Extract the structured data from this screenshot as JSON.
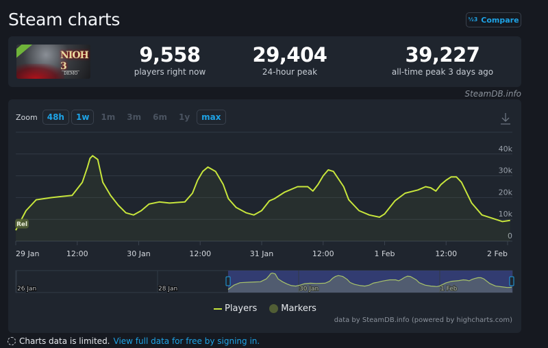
{
  "header": {
    "title": "Steam charts",
    "compare_label": "Compare",
    "compare_icon": "one-two-three-icon"
  },
  "game": {
    "logo_text": "NIOH 3",
    "logo_sub": "DEMO"
  },
  "stats": [
    {
      "value": "9,558",
      "label": "players right now"
    },
    {
      "value": "29,404",
      "label": "24-hour peak"
    },
    {
      "value": "39,227",
      "label": "all-time peak 3 days ago"
    }
  ],
  "watermark": "SteamDB.info",
  "zoom": {
    "label": "Zoom",
    "options": [
      {
        "label": "48h",
        "active": true
      },
      {
        "label": "1w",
        "active": true
      },
      {
        "label": "1m",
        "active": false
      },
      {
        "label": "3m",
        "active": false
      },
      {
        "label": "6m",
        "active": false
      },
      {
        "label": "1y",
        "active": false
      },
      {
        "label": "max",
        "active": true
      }
    ]
  },
  "colors": {
    "line": "#c8e63c",
    "accent": "#1ea3e6",
    "marker": "#515e35",
    "navigator_selection": "#3a4488"
  },
  "chart_data": {
    "type": "line",
    "title": "",
    "xlabel": "",
    "ylabel": "",
    "ylim": [
      0,
      50000
    ],
    "yticks": [
      {
        "v": 0,
        "label": "0"
      },
      {
        "v": 10000,
        "label": "10k"
      },
      {
        "v": 20000,
        "label": "20k"
      },
      {
        "v": 30000,
        "label": "30k"
      },
      {
        "v": 40000,
        "label": "40k"
      }
    ],
    "xticks": [
      {
        "t": "29 Jan 00:00",
        "label": "29 Jan"
      },
      {
        "t": "29 Jan 12:00",
        "label": "12:00"
      },
      {
        "t": "30 Jan 00:00",
        "label": "30 Jan"
      },
      {
        "t": "30 Jan 12:00",
        "label": "12:00"
      },
      {
        "t": "31 Jan 00:00",
        "label": "31 Jan"
      },
      {
        "t": "31 Jan 12:00",
        "label": "12:00"
      },
      {
        "t": "1 Feb 00:00",
        "label": "1 Feb"
      },
      {
        "t": "1 Feb 12:00",
        "label": "12:00"
      },
      {
        "t": "2 Feb 00:00",
        "label": "2 Feb"
      }
    ],
    "grid": true,
    "legend_placement": "bottom",
    "markers": [
      {
        "t": "29 Jan 00:00",
        "value": 8000,
        "label": "Rel"
      }
    ],
    "series": [
      {
        "name": "Players",
        "points": [
          [
            "29 Jan 00:00",
            5000
          ],
          [
            "29 Jan 02:00",
            14000
          ],
          [
            "29 Jan 04:00",
            19000
          ],
          [
            "29 Jan 07:00",
            20000
          ],
          [
            "29 Jan 09:00",
            20500
          ],
          [
            "29 Jan 11:00",
            21000
          ],
          [
            "29 Jan 13:00",
            27000
          ],
          [
            "29 Jan 14:00",
            34000
          ],
          [
            "29 Jan 14:30",
            38000
          ],
          [
            "29 Jan 15:00",
            39200
          ],
          [
            "29 Jan 16:00",
            37500
          ],
          [
            "29 Jan 17:00",
            27000
          ],
          [
            "29 Jan 18:30",
            21000
          ],
          [
            "29 Jan 20:00",
            16500
          ],
          [
            "29 Jan 21:30",
            13000
          ],
          [
            "29 Jan 23:00",
            12000
          ],
          [
            "30 Jan 00:30",
            14000
          ],
          [
            "30 Jan 02:00",
            17000
          ],
          [
            "30 Jan 04:00",
            18000
          ],
          [
            "30 Jan 06:00",
            17500
          ],
          [
            "30 Jan 09:00",
            18000
          ],
          [
            "30 Jan 10:30",
            22000
          ],
          [
            "30 Jan 11:30",
            28000
          ],
          [
            "30 Jan 12:30",
            32000
          ],
          [
            "30 Jan 13:30",
            34000
          ],
          [
            "30 Jan 15:00",
            32000
          ],
          [
            "30 Jan 16:30",
            26000
          ],
          [
            "30 Jan 17:30",
            19500
          ],
          [
            "30 Jan 19:00",
            15500
          ],
          [
            "30 Jan 21:00",
            13000
          ],
          [
            "30 Jan 22:30",
            12000
          ],
          [
            "31 Jan 00:00",
            14000
          ],
          [
            "31 Jan 01:30",
            18500
          ],
          [
            "31 Jan 02:30",
            19500
          ],
          [
            "31 Jan 04:30",
            22500
          ],
          [
            "31 Jan 07:00",
            25000
          ],
          [
            "31 Jan 09:00",
            25000
          ],
          [
            "31 Jan 10:00",
            23000
          ],
          [
            "31 Jan 11:00",
            26000
          ],
          [
            "31 Jan 12:00",
            30000
          ],
          [
            "31 Jan 13:00",
            32700
          ],
          [
            "31 Jan 14:00",
            32000
          ],
          [
            "31 Jan 16:00",
            25000
          ],
          [
            "31 Jan 17:00",
            19000
          ],
          [
            "31 Jan 19:00",
            14000
          ],
          [
            "31 Jan 21:00",
            12000
          ],
          [
            "31 Jan 23:00",
            11000
          ],
          [
            "1 Feb 00:00",
            12500
          ],
          [
            "1 Feb 02:00",
            18500
          ],
          [
            "1 Feb 04:00",
            22000
          ],
          [
            "1 Feb 06:30",
            23500
          ],
          [
            "1 Feb 08:00",
            25000
          ],
          [
            "1 Feb 09:00",
            24500
          ],
          [
            "1 Feb 10:00",
            23000
          ],
          [
            "1 Feb 11:00",
            26000
          ],
          [
            "1 Feb 12:00",
            28000
          ],
          [
            "1 Feb 13:00",
            29500
          ],
          [
            "1 Feb 14:00",
            29500
          ],
          [
            "1 Feb 15:00",
            27000
          ],
          [
            "1 Feb 17:00",
            17500
          ],
          [
            "1 Feb 19:00",
            12000
          ],
          [
            "1 Feb 21:00",
            10500
          ],
          [
            "1 Feb 23:00",
            9000
          ],
          [
            "2 Feb 00:30",
            9500
          ]
        ]
      }
    ],
    "navigator": {
      "xticks": [
        {
          "t": "26 Jan 00:00",
          "label": "26 Jan"
        },
        {
          "t": "28 Jan 00:00",
          "label": "28 Jan"
        },
        {
          "t": "30 Jan 00:00",
          "label": "30 Jan"
        },
        {
          "t": "1 Feb 00:00",
          "label": "1 Feb"
        }
      ]
    }
  },
  "legend": {
    "players": "Players",
    "markers": "Markers"
  },
  "credit": "data by SteamDB.info (powered by highcharts.com)",
  "footer": {
    "notice": "Charts data is limited.",
    "link": "View full data for free by signing in."
  }
}
